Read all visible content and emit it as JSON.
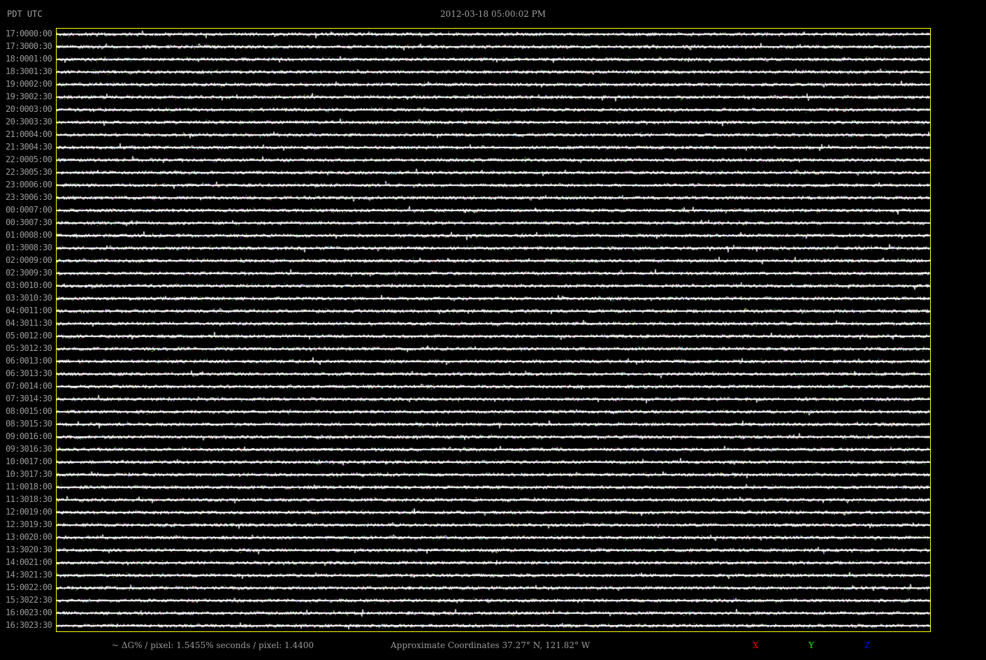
{
  "header": {
    "timezones": "PDT  UTC",
    "title": "2012-03-18  05:00:02 PM"
  },
  "footer": {
    "scale": "~ ΔG% / pixel: 1.5455%   seconds / pixel: 1.4400",
    "coordinates": "Approximate Coordinates 37.27° N, 121.82° W",
    "legend": [
      {
        "label": "X",
        "color": "#ff0000"
      },
      {
        "label": "Y",
        "color": "#00ff00"
      },
      {
        "label": "Z",
        "color": "#0000ff"
      }
    ]
  },
  "chart_data": {
    "type": "line",
    "description_of_rows": "",
    "rows": [
      {
        "pdt": "17:00",
        "utc": "00:00"
      },
      {
        "pdt": "17:30",
        "utc": "00:30"
      },
      {
        "pdt": "18:00",
        "utc": "01:00"
      },
      {
        "pdt": "18:30",
        "utc": "01:30"
      },
      {
        "pdt": "19:00",
        "utc": "02:00"
      },
      {
        "pdt": "19:30",
        "utc": "02:30"
      },
      {
        "pdt": "20:00",
        "utc": "03:00"
      },
      {
        "pdt": "20:30",
        "utc": "03:30"
      },
      {
        "pdt": "21:00",
        "utc": "04:00"
      },
      {
        "pdt": "21:30",
        "utc": "04:30"
      },
      {
        "pdt": "22:00",
        "utc": "05:00"
      },
      {
        "pdt": "22:30",
        "utc": "05:30"
      },
      {
        "pdt": "23:00",
        "utc": "06:00"
      },
      {
        "pdt": "23:30",
        "utc": "06:30"
      },
      {
        "pdt": "00:00",
        "utc": "07:00"
      },
      {
        "pdt": "00:30",
        "utc": "07:30"
      },
      {
        "pdt": "01:00",
        "utc": "08:00"
      },
      {
        "pdt": "01:30",
        "utc": "08:30"
      },
      {
        "pdt": "02:00",
        "utc": "09:00"
      },
      {
        "pdt": "02:30",
        "utc": "09:30"
      },
      {
        "pdt": "03:00",
        "utc": "10:00"
      },
      {
        "pdt": "03:30",
        "utc": "10:30"
      },
      {
        "pdt": "04:00",
        "utc": "11:00"
      },
      {
        "pdt": "04:30",
        "utc": "11:30"
      },
      {
        "pdt": "05:00",
        "utc": "12:00"
      },
      {
        "pdt": "05:30",
        "utc": "12:30"
      },
      {
        "pdt": "06:00",
        "utc": "13:00"
      },
      {
        "pdt": "06:30",
        "utc": "13:30"
      },
      {
        "pdt": "07:00",
        "utc": "14:00"
      },
      {
        "pdt": "07:30",
        "utc": "14:30"
      },
      {
        "pdt": "08:00",
        "utc": "15:00"
      },
      {
        "pdt": "08:30",
        "utc": "15:30"
      },
      {
        "pdt": "09:00",
        "utc": "16:00"
      },
      {
        "pdt": "09:30",
        "utc": "16:30"
      },
      {
        "pdt": "10:00",
        "utc": "17:00"
      },
      {
        "pdt": "10:30",
        "utc": "17:30"
      },
      {
        "pdt": "11:00",
        "utc": "18:00"
      },
      {
        "pdt": "11:30",
        "utc": "18:30"
      },
      {
        "pdt": "12:00",
        "utc": "19:00"
      },
      {
        "pdt": "12:30",
        "utc": "19:30"
      },
      {
        "pdt": "13:00",
        "utc": "20:00"
      },
      {
        "pdt": "13:30",
        "utc": "20:30"
      },
      {
        "pdt": "14:00",
        "utc": "21:00"
      },
      {
        "pdt": "14:30",
        "utc": "21:30"
      },
      {
        "pdt": "15:00",
        "utc": "22:00"
      },
      {
        "pdt": "15:30",
        "utc": "22:30"
      },
      {
        "pdt": "16:00",
        "utc": "23:00"
      },
      {
        "pdt": "16:30",
        "utc": "23:30"
      }
    ],
    "seconds_per_pixel": 1.44,
    "trace_color": "#ffffff",
    "frame_color": "#ffff00"
  }
}
